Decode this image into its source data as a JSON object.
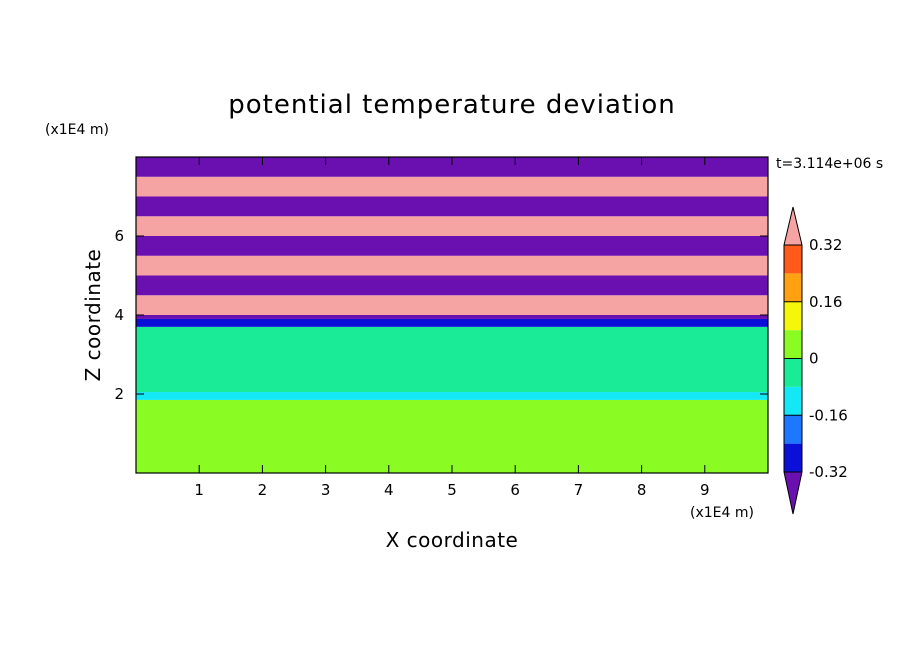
{
  "chart_data": {
    "type": "heatmap",
    "title": "potential temperature deviation",
    "xlabel": "X coordinate",
    "ylabel": "Z coordinate",
    "x_unit": "(x1E4 m)",
    "y_unit": "(x1E4 m)",
    "time_label": "t=3.114e+06 s",
    "xlim": [
      0,
      10
    ],
    "ylim": [
      0,
      8
    ],
    "x_ticks": [
      1,
      2,
      3,
      4,
      5,
      6,
      7,
      8,
      9
    ],
    "y_ticks": [
      2,
      4,
      6
    ],
    "colorbar": {
      "tick_labels": [
        "0.32",
        "0.16",
        "0",
        "-0.16",
        "-0.32"
      ],
      "tick_values": [
        0.32,
        0.16,
        0,
        -0.16,
        -0.32
      ],
      "levels": [
        -0.4,
        -0.32,
        -0.24,
        -0.16,
        -0.08,
        0,
        0.08,
        0.16,
        0.24,
        0.32,
        0.4
      ],
      "colors": [
        "#6a0fb0",
        "#1c0ca8",
        "#0a10d8",
        "#1e78ff",
        "#14e8f4",
        "#19eb97",
        "#8afc23",
        "#f6f60a",
        "#ffa110",
        "#ff5a1a",
        "#e8182a",
        "#f6a3a3"
      ],
      "extend": "both"
    },
    "bands": [
      {
        "z": [
          0.0,
          1.85
        ],
        "value": 0.03
      },
      {
        "z": [
          1.85,
          2.05
        ],
        "value": -0.1
      },
      {
        "z": [
          2.05,
          3.7
        ],
        "value": -0.04
      },
      {
        "z": [
          3.7,
          3.9
        ],
        "value": -0.3
      },
      {
        "z": [
          3.9,
          4.0
        ],
        "value": -0.42
      },
      {
        "z": [
          4.0,
          4.5
        ],
        "value": 0.45
      },
      {
        "z": [
          4.5,
          5.0
        ],
        "value": -0.45
      },
      {
        "z": [
          5.0,
          5.5
        ],
        "value": 0.45
      },
      {
        "z": [
          5.5,
          6.0
        ],
        "value": -0.45
      },
      {
        "z": [
          6.0,
          6.5
        ],
        "value": 0.45
      },
      {
        "z": [
          6.5,
          7.0
        ],
        "value": -0.45
      },
      {
        "z": [
          7.0,
          7.5
        ],
        "value": 0.45
      },
      {
        "z": [
          7.5,
          8.0
        ],
        "value": -0.45
      }
    ]
  }
}
